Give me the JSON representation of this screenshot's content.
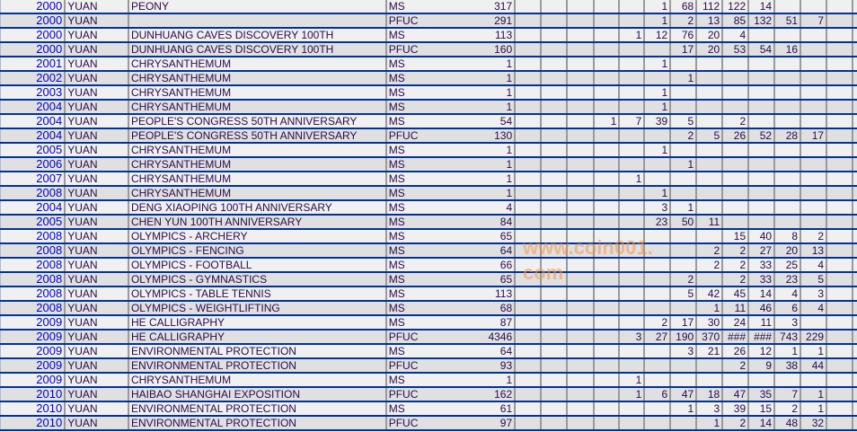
{
  "colors": {
    "row_odd": "#f0f0f0",
    "row_even": "#e0e0e0",
    "row_divider": "#003399",
    "column_divider": "#9a9a9a",
    "year_link": "#0000cc",
    "watermark": "#f59646"
  },
  "watermark": "www.coin001.com",
  "rows": [
    {
      "year": "2000",
      "currency": "YUAN",
      "name": "PEONY",
      "type": "MS",
      "total": "317",
      "grades": [
        "",
        "",
        "",
        "",
        "",
        "1",
        "68",
        "112",
        "122",
        "14",
        "",
        "",
        ""
      ]
    },
    {
      "year": "2000",
      "currency": "YUAN",
      "name": "",
      "type": "PFUC",
      "total": "291",
      "grades": [
        "",
        "",
        "",
        "",
        "",
        "1",
        "2",
        "13",
        "85",
        "132",
        "51",
        "7",
        ""
      ]
    },
    {
      "year": "2000",
      "currency": "YUAN",
      "name": "DUNHUANG CAVES DISCOVERY 100TH",
      "type": "MS",
      "total": "113",
      "grades": [
        "",
        "",
        "",
        "",
        "1",
        "12",
        "76",
        "20",
        "4",
        "",
        "",
        "",
        ""
      ]
    },
    {
      "year": "2000",
      "currency": "YUAN",
      "name": "DUNHUANG CAVES DISCOVERY 100TH",
      "type": "PFUC",
      "total": "160",
      "grades": [
        "",
        "",
        "",
        "",
        "",
        "",
        "17",
        "20",
        "53",
        "54",
        "16",
        "",
        ""
      ]
    },
    {
      "year": "2001",
      "currency": "YUAN",
      "name": "CHRYSANTHEMUM",
      "type": "MS",
      "total": "1",
      "grades": [
        "",
        "",
        "",
        "",
        "",
        "1",
        "",
        "",
        "",
        "",
        "",
        "",
        ""
      ]
    },
    {
      "year": "2002",
      "currency": "YUAN",
      "name": "CHRYSANTHEMUM",
      "type": "MS",
      "total": "1",
      "grades": [
        "",
        "",
        "",
        "",
        "",
        "",
        "1",
        "",
        "",
        "",
        "",
        "",
        ""
      ]
    },
    {
      "year": "2003",
      "currency": "YUAN",
      "name": "CHRYSANTHEMUM",
      "type": "MS",
      "total": "1",
      "grades": [
        "",
        "",
        "",
        "",
        "",
        "1",
        "",
        "",
        "",
        "",
        "",
        "",
        ""
      ]
    },
    {
      "year": "2004",
      "currency": "YUAN",
      "name": "CHRYSANTHEMUM",
      "type": "MS",
      "total": "1",
      "grades": [
        "",
        "",
        "",
        "",
        "",
        "1",
        "",
        "",
        "",
        "",
        "",
        "",
        ""
      ]
    },
    {
      "year": "2004",
      "currency": "YUAN",
      "name": "PEOPLE'S CONGRESS 50TH ANNIVERSARY",
      "type": "MS",
      "total": "54",
      "grades": [
        "",
        "",
        "",
        "1",
        "7",
        "39",
        "5",
        "",
        "2",
        "",
        "",
        "",
        ""
      ]
    },
    {
      "year": "2004",
      "currency": "YUAN",
      "name": "PEOPLE'S CONGRESS 50TH ANNIVERSARY",
      "type": "PFUC",
      "total": "130",
      "grades": [
        "",
        "",
        "",
        "",
        "",
        "",
        "2",
        "5",
        "26",
        "52",
        "28",
        "17",
        ""
      ]
    },
    {
      "year": "2005",
      "currency": "YUAN",
      "name": "CHRYSANTHEMUM",
      "type": "MS",
      "total": "1",
      "grades": [
        "",
        "",
        "",
        "",
        "",
        "1",
        "",
        "",
        "",
        "",
        "",
        "",
        ""
      ]
    },
    {
      "year": "2006",
      "currency": "YUAN",
      "name": "CHRYSANTHEMUM",
      "type": "MS",
      "total": "1",
      "grades": [
        "",
        "",
        "",
        "",
        "",
        "",
        "1",
        "",
        "",
        "",
        "",
        "",
        ""
      ]
    },
    {
      "year": "2007",
      "currency": "YUAN",
      "name": "CHRYSANTHEMUM",
      "type": "MS",
      "total": "1",
      "grades": [
        "",
        "",
        "",
        "",
        "1",
        "",
        "",
        "",
        "",
        "",
        "",
        "",
        ""
      ]
    },
    {
      "year": "2008",
      "currency": "YUAN",
      "name": "CHRYSANTHEMUM",
      "type": "MS",
      "total": "1",
      "grades": [
        "",
        "",
        "",
        "",
        "",
        "1",
        "",
        "",
        "",
        "",
        "",
        "",
        ""
      ]
    },
    {
      "year": "2004",
      "currency": "YUAN",
      "name": "DENG XIAOPING 100TH ANNIVERSARY",
      "type": "MS",
      "total": "4",
      "grades": [
        "",
        "",
        "",
        "",
        "",
        "3",
        "1",
        "",
        "",
        "",
        "",
        "",
        ""
      ]
    },
    {
      "year": "2005",
      "currency": "YUAN",
      "name": "CHEN YUN 100TH ANNIVERSARY",
      "type": "MS",
      "total": "84",
      "grades": [
        "",
        "",
        "",
        "",
        "",
        "23",
        "50",
        "11",
        "",
        "",
        "",
        "",
        ""
      ]
    },
    {
      "year": "2008",
      "currency": "YUAN",
      "name": "OLYMPICS - ARCHERY",
      "type": "MS",
      "total": "65",
      "grades": [
        "",
        "",
        "",
        "",
        "",
        "",
        "",
        "",
        "15",
        "40",
        "8",
        "2",
        ""
      ]
    },
    {
      "year": "2008",
      "currency": "YUAN",
      "name": "OLYMPICS - FENCING",
      "type": "MS",
      "total": "64",
      "grades": [
        "",
        "",
        "",
        "",
        "",
        "",
        "",
        "2",
        "2",
        "27",
        "20",
        "13",
        ""
      ]
    },
    {
      "year": "2008",
      "currency": "YUAN",
      "name": "OLYMPICS - FOOTBALL",
      "type": "MS",
      "total": "66",
      "grades": [
        "",
        "",
        "",
        "",
        "",
        "",
        "",
        "2",
        "2",
        "33",
        "25",
        "4",
        ""
      ]
    },
    {
      "year": "2008",
      "currency": "YUAN",
      "name": "OLYMPICS - GYMNASTICS",
      "type": "MS",
      "total": "65",
      "grades": [
        "",
        "",
        "",
        "",
        "",
        "",
        "2",
        "",
        "2",
        "33",
        "23",
        "5",
        ""
      ]
    },
    {
      "year": "2008",
      "currency": "YUAN",
      "name": "OLYMPICS - TABLE TENNIS",
      "type": "MS",
      "total": "113",
      "grades": [
        "",
        "",
        "",
        "",
        "",
        "",
        "5",
        "42",
        "45",
        "14",
        "4",
        "3",
        ""
      ]
    },
    {
      "year": "2008",
      "currency": "YUAN",
      "name": "OLYMPICS - WEIGHTLIFTING",
      "type": "MS",
      "total": "68",
      "grades": [
        "",
        "",
        "",
        "",
        "",
        "",
        "",
        "1",
        "11",
        "46",
        "6",
        "4",
        ""
      ]
    },
    {
      "year": "2009",
      "currency": "YUAN",
      "name": "HE CALLIGRAPHY",
      "type": "MS",
      "total": "87",
      "grades": [
        "",
        "",
        "",
        "",
        "",
        "2",
        "17",
        "30",
        "24",
        "11",
        "3",
        "",
        ""
      ]
    },
    {
      "year": "2009",
      "currency": "YUAN",
      "name": "HE CALLIGRAPHY",
      "type": "PFUC",
      "total": "4346",
      "grades": [
        "",
        "",
        "",
        "",
        "3",
        "27",
        "190",
        "370",
        "###",
        "###",
        "743",
        "229",
        ""
      ]
    },
    {
      "year": "2009",
      "currency": "YUAN",
      "name": "ENVIRONMENTAL PROTECTION",
      "type": "MS",
      "total": "64",
      "grades": [
        "",
        "",
        "",
        "",
        "",
        "",
        "3",
        "21",
        "26",
        "12",
        "1",
        "1",
        ""
      ]
    },
    {
      "year": "2009",
      "currency": "YUAN",
      "name": "ENVIRONMENTAL PROTECTION",
      "type": "PFUC",
      "total": "93",
      "grades": [
        "",
        "",
        "",
        "",
        "",
        "",
        "",
        "",
        "2",
        "9",
        "38",
        "44",
        ""
      ]
    },
    {
      "year": "2009",
      "currency": "YUAN",
      "name": "CHRYSANTHEMUM",
      "type": "MS",
      "total": "1",
      "grades": [
        "",
        "",
        "",
        "",
        "1",
        "",
        "",
        "",
        "",
        "",
        "",
        "",
        ""
      ]
    },
    {
      "year": "2010",
      "currency": "YUAN",
      "name": "HAIBAO SHANGHAI EXPOSITION",
      "type": "PFUC",
      "total": "162",
      "grades": [
        "",
        "",
        "",
        "",
        "1",
        "6",
        "47",
        "18",
        "47",
        "35",
        "7",
        "1",
        ""
      ]
    },
    {
      "year": "2010",
      "currency": "YUAN",
      "name": "ENVIRONMENTAL PROTECTION",
      "type": "MS",
      "total": "61",
      "grades": [
        "",
        "",
        "",
        "",
        "",
        "",
        "1",
        "3",
        "39",
        "15",
        "2",
        "1",
        ""
      ]
    },
    {
      "year": "2010",
      "currency": "YUAN",
      "name": "ENVIRONMENTAL PROTECTION",
      "type": "PFUC",
      "total": "97",
      "grades": [
        "",
        "",
        "",
        "",
        "",
        "",
        "",
        "1",
        "2",
        "14",
        "48",
        "32",
        ""
      ]
    }
  ]
}
